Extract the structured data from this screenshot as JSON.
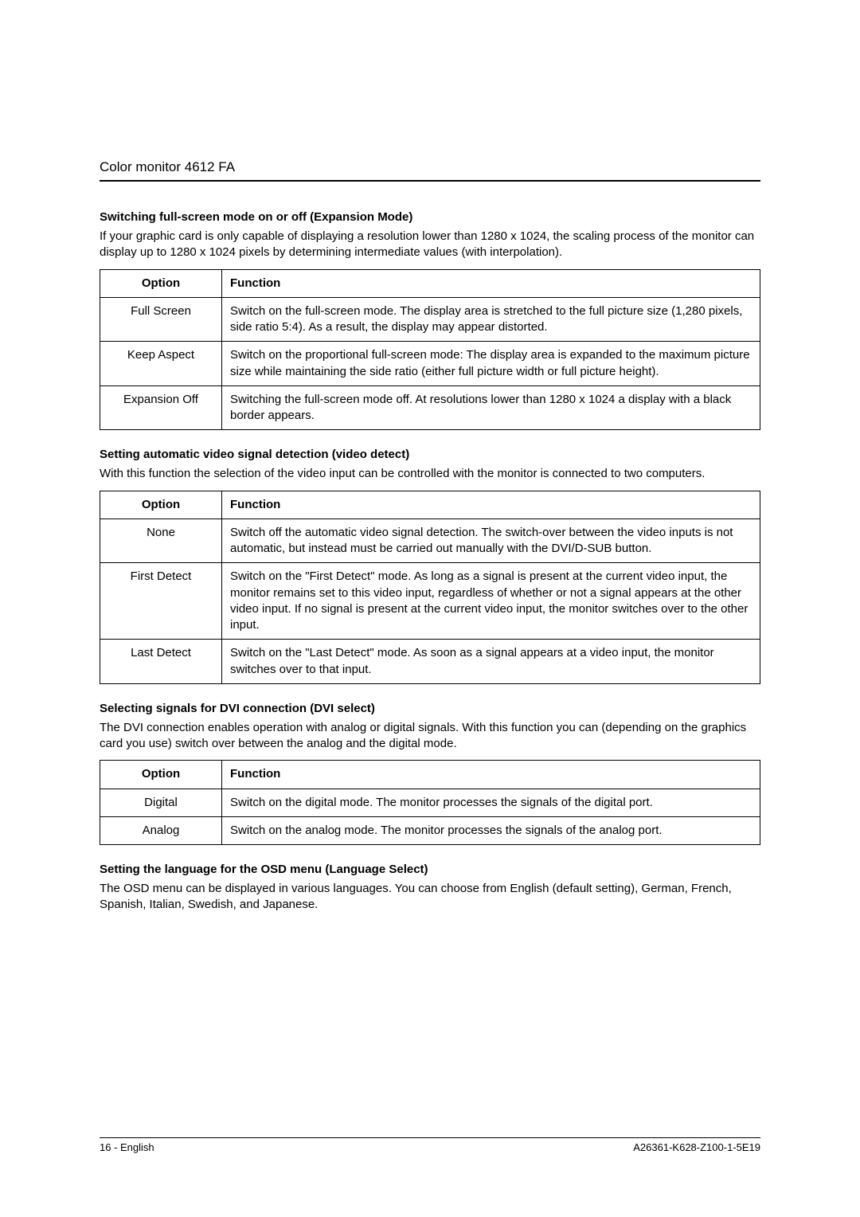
{
  "header": {
    "running_title": "Color monitor 4612 FA"
  },
  "sections": {
    "expansion": {
      "heading": "Switching full-screen mode on or off (Expansion Mode)",
      "intro": "If your graphic card is only capable of displaying a resolution lower than 1280 x 1024, the scaling process of the monitor can display up to 1280 x 1024 pixels by determining intermediate values (with interpolation).",
      "col_option": "Option",
      "col_function": "Function",
      "rows": [
        {
          "option": "Full Screen",
          "function": "Switch on the full-screen mode. The display area is stretched to the full picture size (1,280 pixels, side ratio 5:4). As a result, the display may appear distorted."
        },
        {
          "option": "Keep Aspect",
          "function": "Switch on the proportional full-screen mode: The display area is expanded to the maximum picture size while maintaining the side ratio (either full picture width or full picture height)."
        },
        {
          "option": "Expansion Off",
          "function": "Switching the full-screen mode off. At resolutions lower than 1280 x 1024 a display with a black border appears."
        }
      ]
    },
    "videodetect": {
      "heading": "Setting automatic video signal detection (video detect)",
      "intro": "With this function the selection of the video input can be controlled with the monitor is connected to two computers.",
      "col_option": "Option",
      "col_function": "Function",
      "rows": [
        {
          "option": "None",
          "function": "Switch off the automatic video signal detection. The switch-over between the video inputs is not automatic, but instead must be carried out manually with the DVI/D-SUB button."
        },
        {
          "option": "First Detect",
          "function": "Switch on the \"First Detect\" mode. As long as a signal is present at the current video input, the monitor remains set to this video input, regardless of whether or not a signal appears at the other video input. If no signal is present at the current video input, the monitor switches over to the other input."
        },
        {
          "option": "Last Detect",
          "function": "Switch on the \"Last Detect\" mode. As soon as a signal appears at a video input, the monitor switches over to that input."
        }
      ]
    },
    "dviselect": {
      "heading": "Selecting signals for DVI connection (DVI select)",
      "intro": "The DVI connection enables operation with analog or digital signals. With this function you can (depending on the graphics card you use) switch over between the analog and the digital mode.",
      "col_option": "Option",
      "col_function": "Function",
      "rows": [
        {
          "option": "Digital",
          "function": "Switch on the digital mode. The monitor processes the signals of the digital port."
        },
        {
          "option": "Analog",
          "function": "Switch on the analog mode. The monitor processes the signals of the analog port."
        }
      ]
    },
    "language": {
      "heading": "Setting the language for the OSD menu (Language Select)",
      "intro": "The OSD menu can be displayed in various languages. You can choose from English (default setting), German, French, Spanish, Italian, Swedish, and Japanese."
    }
  },
  "footer": {
    "left": "16 - English",
    "right": "A26361-K628-Z100-1-5E19"
  }
}
